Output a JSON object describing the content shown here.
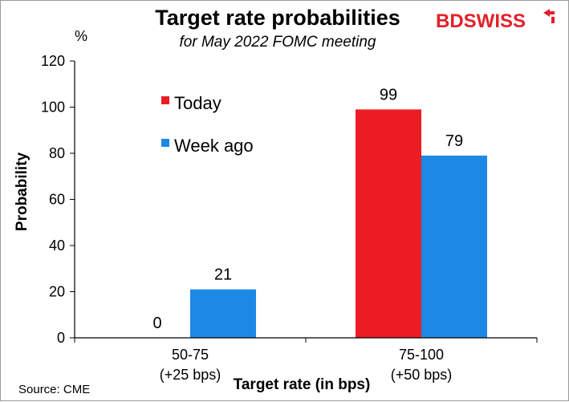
{
  "header": {
    "title": "Target rate probabilities",
    "subtitle": "for May 2022 FOMC meeting"
  },
  "brand": {
    "part1": "BD",
    "part2": "SWISS",
    "color": "#e3202a"
  },
  "source": "Source: CME",
  "chart_data": {
    "type": "bar",
    "unit_label": "%",
    "ylabel": "Probability",
    "xlabel": "Target rate (in bps)",
    "ylim": [
      0,
      120
    ],
    "yticks": [
      0,
      20,
      40,
      60,
      80,
      100,
      120
    ],
    "categories": [
      {
        "line1": "50-75",
        "line2": "(+25 bps)"
      },
      {
        "line1": "75-100",
        "line2": "(+50 bps)"
      }
    ],
    "series": [
      {
        "name": "Today",
        "color": "#ec1c24",
        "values": [
          0,
          99
        ]
      },
      {
        "name": "Week ago",
        "color": "#1e88e5",
        "values": [
          21,
          79
        ]
      }
    ],
    "legend_position": "top-left",
    "grid": false
  }
}
